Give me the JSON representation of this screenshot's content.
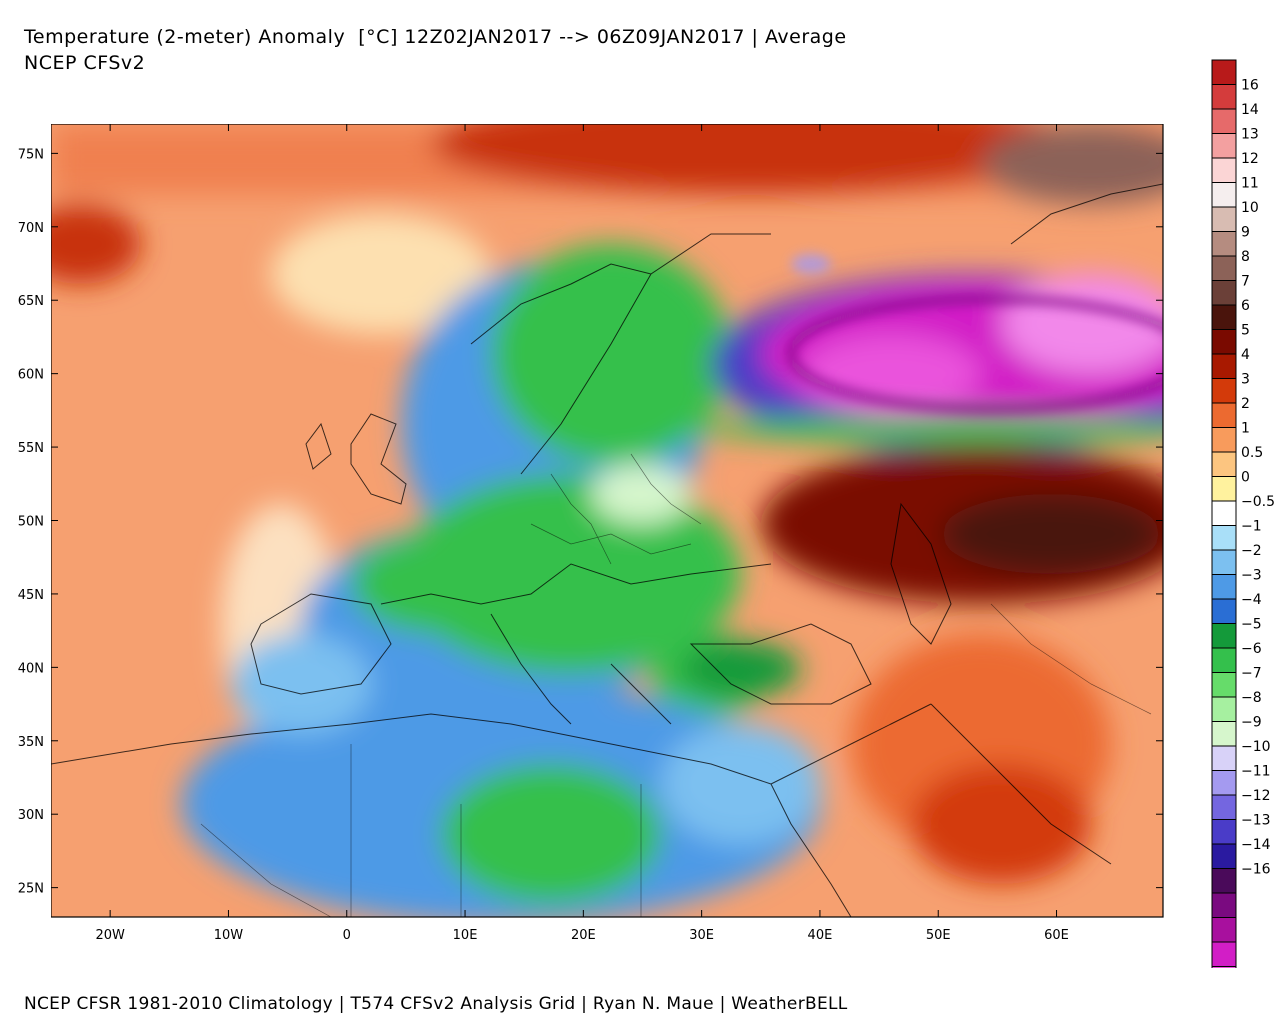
{
  "header": {
    "title": "Temperature (2-meter) Anomaly  [°C] 12Z02JAN2017 --> 06Z09JAN2017 | Average",
    "model": "NCEP CFSv2"
  },
  "footer": {
    "credits": "NCEP CFSR 1981-2010 Climatology | T574 CFSv2 Analysis Grid | Ryan N. Maue | WeatherBELL"
  },
  "map": {
    "lon_range": [
      -25,
      69
    ],
    "lat_range": [
      23,
      77
    ],
    "lon_ticks": [
      {
        "lon": -20,
        "label": "20W"
      },
      {
        "lon": -10,
        "label": "10W"
      },
      {
        "lon": 0,
        "label": "0"
      },
      {
        "lon": 10,
        "label": "10E"
      },
      {
        "lon": 20,
        "label": "20E"
      },
      {
        "lon": 30,
        "label": "30E"
      },
      {
        "lon": 40,
        "label": "40E"
      },
      {
        "lon": 50,
        "label": "50E"
      },
      {
        "lon": 60,
        "label": "60E"
      }
    ],
    "lat_ticks": [
      {
        "lat": 75,
        "label": "75N"
      },
      {
        "lat": 70,
        "label": "70N"
      },
      {
        "lat": 65,
        "label": "65N"
      },
      {
        "lat": 60,
        "label": "60N"
      },
      {
        "lat": 55,
        "label": "55N"
      },
      {
        "lat": 50,
        "label": "50N"
      },
      {
        "lat": 45,
        "label": "45N"
      },
      {
        "lat": 40,
        "label": "40N"
      },
      {
        "lat": 35,
        "label": "35N"
      },
      {
        "lat": 30,
        "label": "30N"
      },
      {
        "lat": 25,
        "label": "25N"
      }
    ]
  },
  "colorbar": {
    "entries": [
      {
        "label": "16",
        "color": "#b81a1a"
      },
      {
        "label": "14",
        "color": "#d43c3c"
      },
      {
        "label": "13",
        "color": "#e66a6a"
      },
      {
        "label": "12",
        "color": "#f3a0a0"
      },
      {
        "label": "11",
        "color": "#fbd5d5"
      },
      {
        "label": "10",
        "color": "#f5eeee"
      },
      {
        "label": "9",
        "color": "#d8bcb2"
      },
      {
        "label": "8",
        "color": "#b58c80"
      },
      {
        "label": "7",
        "color": "#8c6258"
      },
      {
        "label": "6",
        "color": "#6b4038"
      },
      {
        "label": "5",
        "color": "#4a140c"
      },
      {
        "label": "4",
        "color": "#7a0a00"
      },
      {
        "label": "3",
        "color": "#a81900"
      },
      {
        "label": "2",
        "color": "#d33a0a"
      },
      {
        "label": "1",
        "color": "#ec6a30"
      },
      {
        "label": "0.5",
        "color": "#f89b5c"
      },
      {
        "label": "0",
        "color": "#fcc580"
      },
      {
        "label": "-0.5",
        "color": "#fff29e"
      },
      {
        "label": "-1",
        "color": "#ffffff"
      },
      {
        "label": "-2",
        "color": "#a9dff8"
      },
      {
        "label": "-3",
        "color": "#7cc0f0"
      },
      {
        "label": "-4",
        "color": "#4e9ae6"
      },
      {
        "label": "-5",
        "color": "#2a6ed4"
      },
      {
        "label": "-6",
        "color": "#149a3a"
      },
      {
        "label": "-7",
        "color": "#34c04c"
      },
      {
        "label": "-8",
        "color": "#66dc6a"
      },
      {
        "label": "-9",
        "color": "#a6f0a0"
      },
      {
        "label": "-10",
        "color": "#d6f6cc"
      },
      {
        "label": "-11",
        "color": "#d8d2f8"
      },
      {
        "label": "-12",
        "color": "#a49af0"
      },
      {
        "label": "-13",
        "color": "#7466e0"
      },
      {
        "label": "-14",
        "color": "#4a3cc8"
      },
      {
        "label": "-16",
        "color": "#2a1aa0"
      },
      {
        "label": "",
        "color": "#4a0a5a"
      },
      {
        "label": "",
        "color": "#7a0a80"
      },
      {
        "label": "",
        "color": "#a8109e"
      },
      {
        "label": "",
        "color": "#d21ec6"
      },
      {
        "label": "",
        "color": "#ea52dc"
      },
      {
        "label": "",
        "color": "#f288ea"
      }
    ]
  }
}
